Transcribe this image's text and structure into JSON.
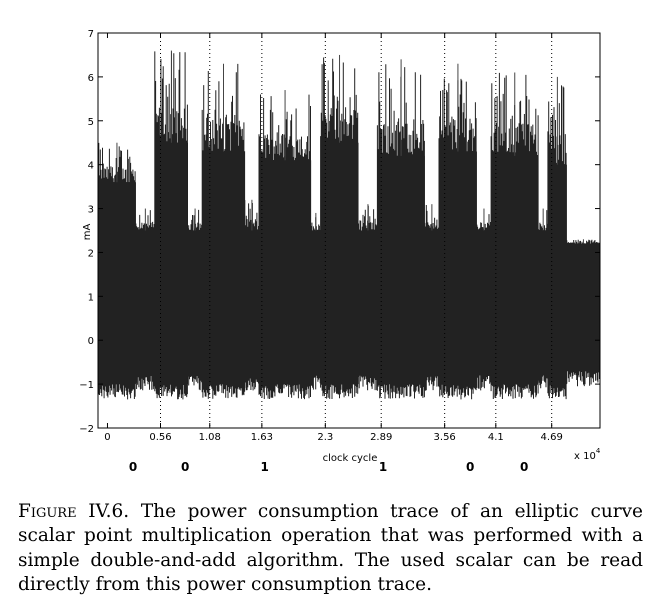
{
  "chart_data": {
    "type": "line",
    "title": "",
    "xlabel": "clock cycle",
    "ylabel": "mA",
    "x_multiplier_label": "x 10",
    "x_multiplier_exp": "4",
    "xlim": [
      -0.1,
      5.2
    ],
    "ylim": [
      -2,
      7
    ],
    "y_ticks": [
      "−2",
      "−1",
      "0",
      "1",
      "2",
      "3",
      "4",
      "5",
      "6",
      "7"
    ],
    "x_ticks": [
      {
        "value": 0,
        "label": "0"
      },
      {
        "value": 0.56,
        "label": "0.56"
      },
      {
        "value": 1.08,
        "label": "1.08"
      },
      {
        "value": 1.63,
        "label": "1.63"
      },
      {
        "value": 2.3,
        "label": "2.3"
      },
      {
        "value": 2.89,
        "label": "2.89"
      },
      {
        "value": 3.56,
        "label": "3.56"
      },
      {
        "value": 4.1,
        "label": "4.1"
      },
      {
        "value": 4.69,
        "label": "4.69"
      }
    ],
    "markers_dotted": [
      0.56,
      1.08,
      1.63,
      2.3,
      2.89,
      3.56,
      4.1,
      4.69
    ],
    "grid": false,
    "series": [
      {
        "values_description_segments": [
          {
            "x_start": -0.1,
            "x_end": 0.3,
            "lower": -1.0,
            "upper": 3.6,
            "peak": 4.5
          },
          {
            "x_start": 0.3,
            "x_end": 0.5,
            "lower": -0.8,
            "upper": 2.5,
            "peak": 3.0
          },
          {
            "x_start": 0.5,
            "x_end": 0.85,
            "lower": -1.0,
            "upper": 4.5,
            "peak": 6.6
          },
          {
            "x_start": 0.85,
            "x_end": 1.0,
            "lower": -0.8,
            "upper": 2.5,
            "peak": 3.0
          },
          {
            "x_start": 1.0,
            "x_end": 1.45,
            "lower": -1.0,
            "upper": 4.3,
            "peak": 6.3
          },
          {
            "x_start": 1.45,
            "x_end": 1.6,
            "lower": -0.8,
            "upper": 2.5,
            "peak": 3.2
          },
          {
            "x_start": 1.6,
            "x_end": 2.15,
            "lower": -1.0,
            "upper": 4.1,
            "peak": 5.7
          },
          {
            "x_start": 2.15,
            "x_end": 2.25,
            "lower": -0.8,
            "upper": 2.5,
            "peak": 2.9
          },
          {
            "x_start": 2.25,
            "x_end": 2.65,
            "lower": -1.0,
            "upper": 4.5,
            "peak": 6.5
          },
          {
            "x_start": 2.65,
            "x_end": 2.85,
            "lower": -0.8,
            "upper": 2.5,
            "peak": 3.1
          },
          {
            "x_start": 2.85,
            "x_end": 3.35,
            "lower": -1.0,
            "upper": 4.2,
            "peak": 6.4
          },
          {
            "x_start": 3.35,
            "x_end": 3.5,
            "lower": -0.8,
            "upper": 2.5,
            "peak": 3.1
          },
          {
            "x_start": 3.5,
            "x_end": 3.9,
            "lower": -1.0,
            "upper": 4.3,
            "peak": 6.3
          },
          {
            "x_start": 3.9,
            "x_end": 4.05,
            "lower": -0.8,
            "upper": 2.5,
            "peak": 3.0
          },
          {
            "x_start": 4.05,
            "x_end": 4.55,
            "lower": -1.0,
            "upper": 4.2,
            "peak": 6.1
          },
          {
            "x_start": 4.55,
            "x_end": 4.65,
            "lower": -0.8,
            "upper": 2.5,
            "peak": 3.0
          },
          {
            "x_start": 4.65,
            "x_end": 4.85,
            "lower": -1.0,
            "upper": 4.0,
            "peak": 6.0
          },
          {
            "x_start": 4.85,
            "x_end": 5.2,
            "lower": -0.7,
            "upper": 2.2,
            "peak": 2.3
          }
        ],
        "color": "#000000"
      }
    ],
    "annotations_bits": [
      {
        "x": 0.27,
        "label": "0"
      },
      {
        "x": 0.82,
        "label": "0"
      },
      {
        "x": 1.66,
        "label": "1"
      },
      {
        "x": 2.91,
        "label": "1"
      },
      {
        "x": 3.83,
        "label": "0"
      },
      {
        "x": 4.4,
        "label": "0"
      }
    ]
  },
  "caption": {
    "label": "Figure IV.6.",
    "text": "The power consumption trace of an elliptic curve scalar point multiplication operation that was performed with a simple double-and-add algorithm. The used scalar can be read directly from this power consumption trace."
  }
}
